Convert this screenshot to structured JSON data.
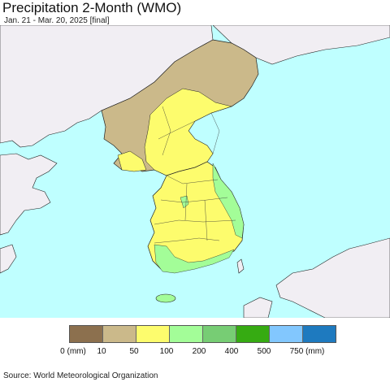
{
  "title": "Precipitation 2-Month (WMO)",
  "subtitle": "Jan. 21 - Mar. 20, 2025 [final]",
  "source": "Source: World Meteorological Organization",
  "colors": {
    "sea": "#bfffff",
    "land_other": "#f1eef3",
    "border": "#222222"
  },
  "legend": {
    "colors": [
      "#8c704e",
      "#cbb98a",
      "#fdfc6d",
      "#a3fd98",
      "#77cd74",
      "#36ab12",
      "#82c7fe",
      "#1e7abf"
    ],
    "ticks": [
      "0 (mm)",
      "10",
      "50",
      "100",
      "200",
      "400",
      "500",
      "750 (mm)"
    ]
  }
}
